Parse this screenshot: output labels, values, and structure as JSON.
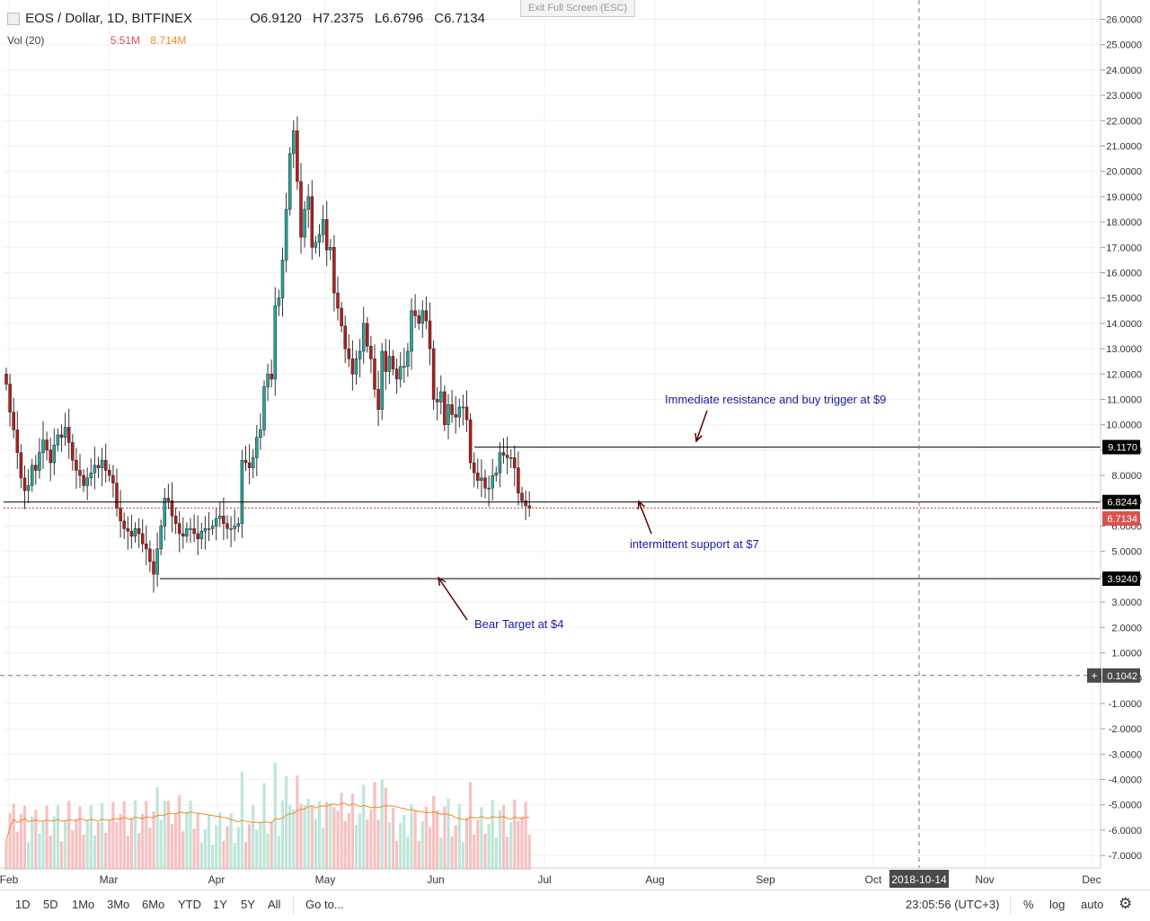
{
  "header": {
    "symbol": "EOS / Dollar, 1D, BITFINEX",
    "open": "O6.9120",
    "high": "H7.2375",
    "low": "L6.6796",
    "close": "C6.7134"
  },
  "volume_legend": {
    "label": "Vol (20)",
    "value1": "5.51M",
    "value2": "8.714M"
  },
  "exit_fullscreen": "Exit Full Screen (ESC)",
  "annotations": {
    "resistance": "Immediate resistance and buy trigger at $9",
    "support": "intermittent support at $7",
    "bear": "Bear Target at $4"
  },
  "price_labels": {
    "resistance": "9.1170",
    "support_line": "6.8244",
    "last": "6.7134",
    "bear": "3.9240",
    "crosshair": "0.1042"
  },
  "crosshair_date": "2018-10-14",
  "bottom_bar": {
    "ranges": [
      "1D",
      "5D",
      "1Mo",
      "3Mo",
      "6Mo",
      "YTD",
      "1Y",
      "5Y",
      "All"
    ],
    "goto": "Go to...",
    "clock": "23:05:56 (UTC+3)",
    "percent": "%",
    "log": "log",
    "auto": "auto"
  },
  "colors": {
    "up": "#26a69a",
    "down": "#b71c1c",
    "vol_up": "#bfe6d8",
    "vol_down": "#f6c1c1",
    "ma": "#f08a24",
    "annotation": "#1a1aa6",
    "arrow": "#5a0000"
  },
  "chart_data": {
    "type": "candlestick",
    "title": "EOS / Dollar, 1D, BITFINEX",
    "y_axis_ticks": [
      "26.0000",
      "25.0000",
      "24.0000",
      "23.0000",
      "22.0000",
      "21.0000",
      "20.0000",
      "19.0000",
      "18.0000",
      "17.0000",
      "16.0000",
      "15.0000",
      "14.0000",
      "13.0000",
      "12.0000",
      "11.0000",
      "10.0000",
      "9.0000",
      "8.0000",
      "7.0000",
      "6.0000",
      "5.0000",
      "4.0000",
      "3.0000",
      "2.0000",
      "1.0000",
      "0.0000",
      "-1.0000",
      "-2.0000",
      "-3.0000",
      "-4.0000",
      "-5.0000",
      "-6.0000",
      "-7.0000"
    ],
    "x_axis_ticks": [
      "Feb",
      "Mar",
      "Apr",
      "May",
      "Jun",
      "Jul",
      "Aug",
      "Sep",
      "Oct",
      "Nov",
      "Dec"
    ],
    "ylim": [
      -7.5,
      26.5
    ],
    "series_close": [
      11.6,
      10.5,
      9.8,
      8.9,
      7.9,
      7.4,
      7.6,
      8.4,
      8.2,
      8.9,
      9.4,
      9.0,
      8.5,
      9.2,
      9.6,
      9.5,
      9.9,
      9.3,
      8.6,
      8.2,
      8.0,
      7.6,
      7.9,
      8.1,
      8.4,
      8.3,
      8.6,
      8.2,
      8.0,
      7.7,
      6.7,
      6.2,
      5.9,
      5.8,
      5.6,
      5.9,
      5.7,
      5.3,
      5.1,
      4.6,
      4.1,
      5.1,
      6.0,
      7.1,
      7.0,
      6.4,
      6.1,
      5.7,
      5.6,
      5.9,
      5.9,
      5.7,
      5.5,
      5.8,
      5.9,
      5.9,
      6.0,
      6.3,
      6.4,
      6.1,
      5.9,
      5.9,
      6.0,
      6.1,
      8.6,
      8.5,
      8.3,
      8.7,
      9.5,
      9.8,
      11.5,
      12.0,
      11.8,
      14.7,
      15.0,
      16.5,
      18.5,
      20.7,
      21.6,
      19.6,
      17.4,
      18.5,
      19.0,
      17.0,
      17.2,
      17.5,
      18.1,
      16.9,
      17.0,
      15.2,
      14.6,
      13.9,
      13.0,
      12.6,
      12.0,
      12.6,
      12.9,
      14.0,
      13.1,
      12.6,
      11.4,
      10.6,
      12.9,
      12.1,
      12.7,
      12.2,
      11.8,
      12.3,
      12.3,
      12.9,
      14.5,
      14.3,
      14.0,
      14.5,
      14.1,
      13.0,
      11.0,
      10.9,
      11.3,
      10.0,
      10.8,
      10.4,
      10.3,
      10.7,
      10.7,
      10.2,
      8.5,
      8.1,
      7.8,
      7.9,
      7.5,
      7.5,
      8.0,
      8.1,
      8.9,
      8.8,
      8.7,
      8.7,
      8.3,
      7.3,
      7.0,
      6.8,
      6.7
    ],
    "series_volume_ma_note": "Vol (20)"
  }
}
